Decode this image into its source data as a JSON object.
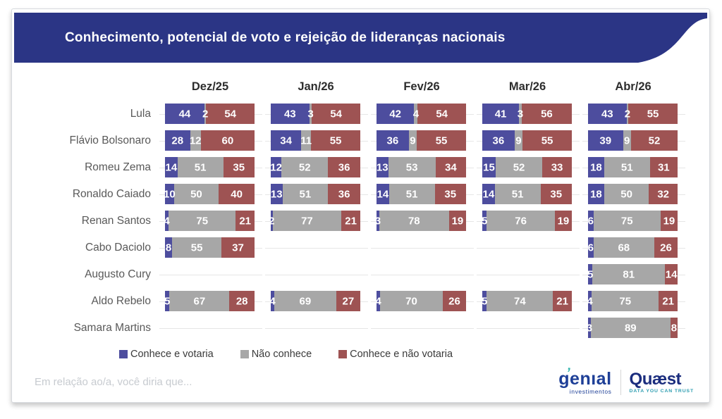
{
  "title": "Conhecimento, potencial de voto e rejeição de lideranças nacionais",
  "legend": [
    {
      "label": "Conhece e votaria",
      "color": "#4d4d9e"
    },
    {
      "label": "Não conhece",
      "color": "#a7a7a7"
    },
    {
      "label": "Conhece e não votaria",
      "color": "#9e5353"
    }
  ],
  "colors": {
    "banner": "#2b3585",
    "gridline": "#e6e6e6"
  },
  "chart_data": {
    "type": "bar",
    "subtype": "horizontal-stacked-small-multiples",
    "unit": "percent",
    "xlim": [
      0,
      100
    ],
    "categories": [
      "Dez/25",
      "Jan/26",
      "Fev/26",
      "Mar/26",
      "Abr/26"
    ],
    "series_labels": [
      "Conhece e votaria",
      "Não conhece",
      "Conhece e não votaria"
    ],
    "segment_names": [
      "segment-conhece-e-votaria",
      "segment-nao-conhece",
      "segment-conhece-e-nao-votaria"
    ],
    "rows": [
      {
        "name": "Lula",
        "values": [
          [
            44,
            2,
            54
          ],
          [
            43,
            3,
            54
          ],
          [
            42,
            4,
            54
          ],
          [
            41,
            3,
            56
          ],
          [
            43,
            2,
            55
          ]
        ]
      },
      {
        "name": "Flávio Bolsonaro",
        "values": [
          [
            28,
            12,
            60
          ],
          [
            34,
            11,
            55
          ],
          [
            36,
            9,
            55
          ],
          [
            36,
            9,
            55
          ],
          [
            39,
            9,
            52
          ]
        ]
      },
      {
        "name": "Romeu Zema",
        "values": [
          [
            14,
            51,
            35
          ],
          [
            12,
            52,
            36
          ],
          [
            13,
            53,
            34
          ],
          [
            15,
            52,
            33
          ],
          [
            18,
            51,
            31
          ]
        ]
      },
      {
        "name": "Ronaldo Caiado",
        "values": [
          [
            10,
            50,
            40
          ],
          [
            13,
            51,
            36
          ],
          [
            14,
            51,
            35
          ],
          [
            14,
            51,
            35
          ],
          [
            18,
            50,
            32
          ]
        ]
      },
      {
        "name": "Renan Santos",
        "values": [
          [
            4,
            75,
            21
          ],
          [
            2,
            77,
            21
          ],
          [
            3,
            78,
            19
          ],
          [
            5,
            76,
            19
          ],
          [
            6,
            75,
            19
          ]
        ]
      },
      {
        "name": "Cabo Daciolo",
        "values": [
          [
            8,
            55,
            37
          ],
          null,
          null,
          null,
          [
            6,
            68,
            26
          ]
        ]
      },
      {
        "name": "Augusto Cury",
        "values": [
          null,
          null,
          null,
          null,
          [
            5,
            81,
            14
          ]
        ]
      },
      {
        "name": "Aldo Rebelo",
        "values": [
          [
            5,
            67,
            28
          ],
          [
            4,
            69,
            27
          ],
          [
            4,
            70,
            26
          ],
          [
            5,
            74,
            21
          ],
          [
            4,
            75,
            21
          ]
        ]
      },
      {
        "name": "Samara Martins",
        "values": [
          null,
          null,
          null,
          null,
          [
            3,
            89,
            8
          ]
        ]
      }
    ]
  },
  "footer": {
    "question": "Em relação ao/a, você diria que...",
    "genial_name": "genıal",
    "genial_sub": "investimentos",
    "quaest_name": "Quæst",
    "quaest_tagline": "DATA YOU CAN TRUST"
  }
}
